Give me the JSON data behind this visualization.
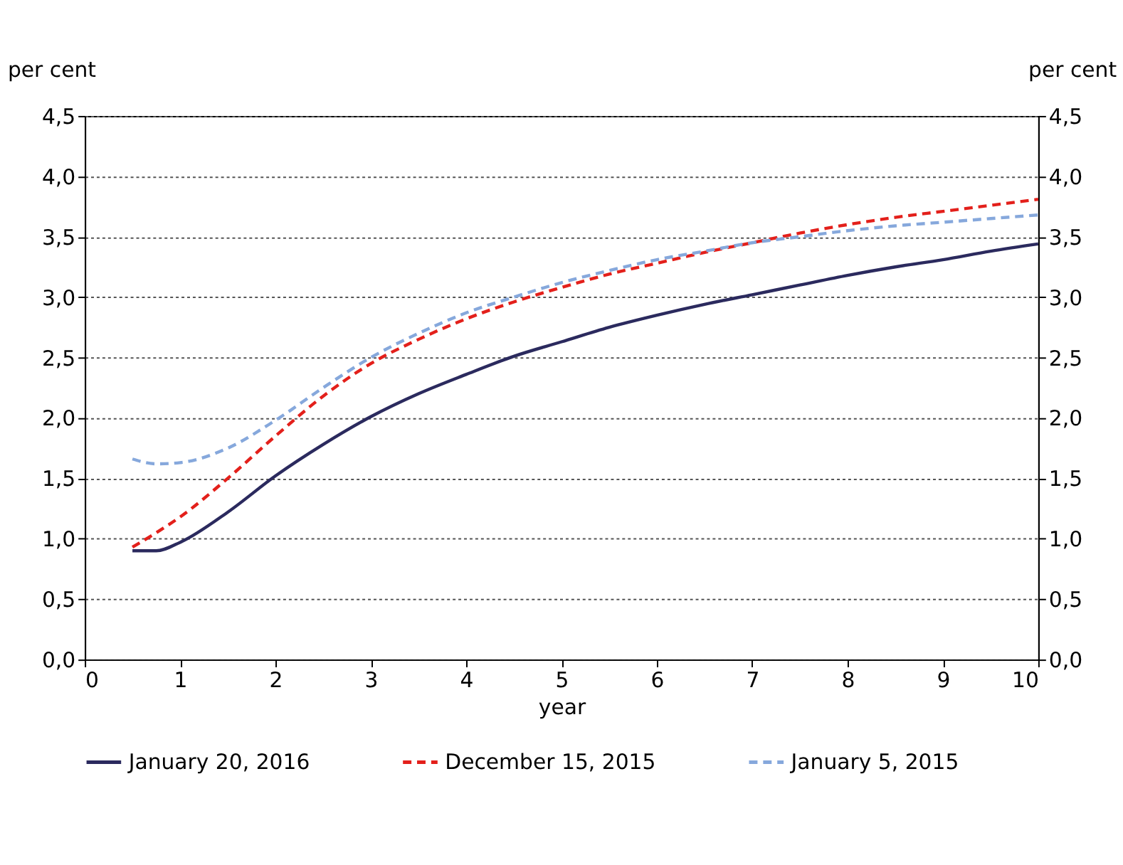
{
  "chart_data": {
    "type": "line",
    "xlabel": "year",
    "ylabel": "per cent",
    "y2label": "per cent",
    "x": [
      0.5,
      0.75,
      1,
      1.5,
      2,
      2.5,
      3,
      3.5,
      4,
      4.5,
      5,
      5.5,
      6,
      6.5,
      7,
      7.5,
      8,
      8.5,
      9,
      9.5,
      10
    ],
    "series": [
      {
        "name": "January 20, 2016",
        "color": "#2b2a5e",
        "line_style": "solid",
        "values": [
          0.9,
          0.9,
          0.97,
          1.22,
          1.52,
          1.78,
          2.01,
          2.2,
          2.36,
          2.51,
          2.63,
          2.75,
          2.85,
          2.94,
          3.02,
          3.1,
          3.18,
          3.25,
          3.31,
          3.38,
          3.44
        ]
      },
      {
        "name": "December 15, 2015",
        "color": "#e3201b",
        "line_style": "dashed",
        "values": [
          0.93,
          1.05,
          1.18,
          1.5,
          1.85,
          2.18,
          2.45,
          2.65,
          2.82,
          2.96,
          3.08,
          3.19,
          3.28,
          3.37,
          3.45,
          3.53,
          3.6,
          3.66,
          3.71,
          3.76,
          3.81
        ]
      },
      {
        "name": "January 5, 2015",
        "color": "#86a8dc",
        "line_style": "dashed",
        "values": [
          1.66,
          1.62,
          1.63,
          1.75,
          1.98,
          2.25,
          2.5,
          2.7,
          2.87,
          3.0,
          3.12,
          3.22,
          3.31,
          3.38,
          3.45,
          3.5,
          3.55,
          3.59,
          3.62,
          3.65,
          3.68
        ]
      }
    ],
    "xlim": [
      0,
      10
    ],
    "xticks": [
      0,
      1,
      2,
      3,
      4,
      5,
      6,
      7,
      8,
      9,
      10
    ],
    "ylim": [
      0,
      4.5
    ],
    "yticks": [
      {
        "value": 0,
        "label": "0,0"
      },
      {
        "value": 0.5,
        "label": "0,5"
      },
      {
        "value": 1,
        "label": "1,0"
      },
      {
        "value": 1.5,
        "label": "1,5"
      },
      {
        "value": 2,
        "label": "2,0"
      },
      {
        "value": 2.5,
        "label": "2,5"
      },
      {
        "value": 3,
        "label": "3,0"
      },
      {
        "value": 3.5,
        "label": "3,5"
      },
      {
        "value": 4,
        "label": "4,0"
      },
      {
        "value": 4.5,
        "label": "4,5"
      }
    ],
    "y2lim": [
      0,
      4.5
    ],
    "y2ticks": [
      {
        "value": 0,
        "label": "0,0"
      },
      {
        "value": 0.5,
        "label": "0,5"
      },
      {
        "value": 1,
        "label": "1,0"
      },
      {
        "value": 1.5,
        "label": "1,5"
      },
      {
        "value": 2,
        "label": "2,0"
      },
      {
        "value": 2.5,
        "label": "2,5"
      },
      {
        "value": 3,
        "label": "3,0"
      },
      {
        "value": 3.5,
        "label": "3,5"
      },
      {
        "value": 4,
        "label": "4,0"
      },
      {
        "value": 4.5,
        "label": "4,5"
      }
    ],
    "grid": "y",
    "legend": "bottom",
    "marker": "none"
  }
}
